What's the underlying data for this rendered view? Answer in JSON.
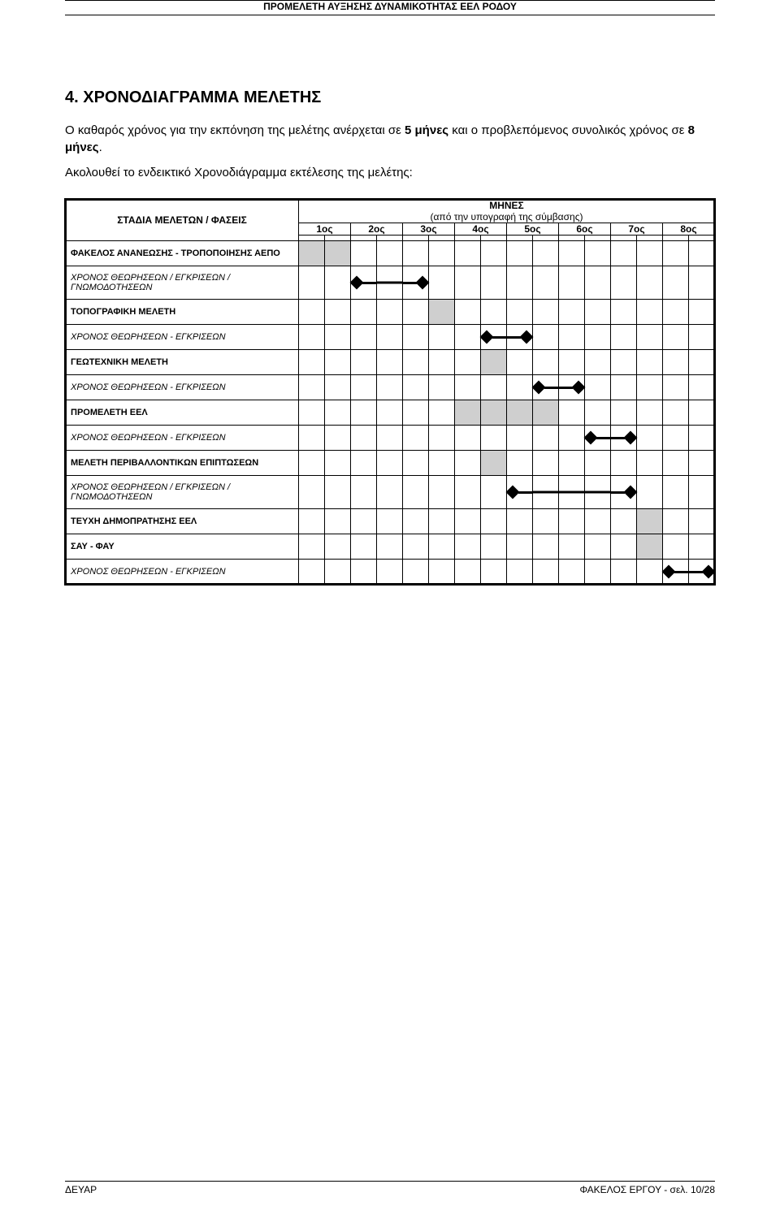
{
  "running_header": "ΠΡΟΜΕΛΕΤΗ ΑΥΞΗΣΗΣ ΔΥΝΑΜΙΚΟΤΗΤΑΣ ΕΕΛ ΡΟΔΟΥ",
  "heading": "4.    ΧΡΟΝΟΔΙΑΓΡΑΜΜΑ  ΜΕΛΕΤΗΣ",
  "para1_a": "Ο καθαρός χρόνος για την εκπόνηση της μελέτης ανέρχεται σε ",
  "para1_5": "5 μήνες",
  "para1_b": " και ο προβλεπόμενος συνολικός χρόνος σε ",
  "para1_8": "8 μήνες",
  "para1_c": ".",
  "para2": "Ακολουθεί το ενδεικτικό Χρονοδιάγραμμα εκτέλεσης της μελέτης:",
  "table_phases_label": "ΣΤΑΔΙΑ ΜΕΛΕΤΩΝ / ΦΑΣΕΙΣ",
  "months_title": "ΜΗΝΕΣ",
  "months_subtitle": "(από την υπογραφή της σύμβασης)",
  "months": [
    "1ος",
    "2ος",
    "3ος",
    "4ος",
    "5ος",
    "6ος",
    "7ος",
    "8ος"
  ],
  "rows": [
    {
      "label": "ΦΑΚΕΛΟΣ ΑΝΑΝΕΩΣΗΣ - ΤΡΟΠΟΠΟΙΗΣΗΣ ΑΕΠΟ",
      "bold": true,
      "shaded": [
        1,
        2
      ],
      "milestone": null
    },
    {
      "label": "ΧΡΟΝΟΣ ΘΕΩΡΗΣΕΩΝ / ΕΓΚΡΙΣΕΩΝ / ΓΝΩΜΟΔΟΤΗΣΕΩΝ",
      "italic": true,
      "shaded": [],
      "milestone": {
        "from": 3,
        "to": 5
      }
    },
    {
      "label": "ΤΟΠΟΓΡΑΦΙΚΗ ΜΕΛΕΤΗ",
      "bold": true,
      "shaded": [
        6
      ],
      "milestone": null
    },
    {
      "label": "ΧΡΟΝΟΣ ΘΕΩΡΗΣΕΩΝ - ΕΓΚΡΙΣΕΩΝ",
      "italic": true,
      "shaded": [],
      "milestone": {
        "from": 8,
        "to": 9
      }
    },
    {
      "label": "ΓΕΩΤΕΧΝΙΚΗ ΜΕΛΕΤΗ",
      "bold": true,
      "shaded": [
        8
      ],
      "milestone": null
    },
    {
      "label": "ΧΡΟΝΟΣ ΘΕΩΡΗΣΕΩΝ - ΕΓΚΡΙΣΕΩΝ",
      "italic": true,
      "shaded": [],
      "milestone": {
        "from": 10,
        "to": 11
      }
    },
    {
      "label": "ΠΡΟΜΕΛΕΤΗ ΕΕΛ",
      "bold": true,
      "shaded": [
        7,
        8,
        9,
        10
      ],
      "milestone": null
    },
    {
      "label": "ΧΡΟΝΟΣ ΘΕΩΡΗΣΕΩΝ - ΕΓΚΡΙΣΕΩΝ",
      "italic": true,
      "shaded": [],
      "milestone": {
        "from": 12,
        "to": 13
      }
    },
    {
      "label": "ΜΕΛΕΤΗ ΠΕΡΙΒΑΛΛΟΝΤΙΚΩΝ ΕΠΙΠΤΩΣΕΩΝ",
      "bold": true,
      "shaded": [
        8
      ],
      "milestone": null
    },
    {
      "label": "ΧΡΟΝΟΣ ΘΕΩΡΗΣΕΩΝ / ΕΓΚΡΙΣΕΩΝ / ΓΝΩΜΟΔΟΤΗΣΕΩΝ",
      "italic": true,
      "shaded": [],
      "milestone": {
        "from": 9,
        "to": 13
      }
    },
    {
      "label": "ΤΕΥΧΗ ΔΗΜΟΠΡΑΤΗΣΗΣ ΕΕΛ",
      "bold": true,
      "shaded": [
        14
      ],
      "milestone": null
    },
    {
      "label": "ΣΑΥ - ΦΑΥ",
      "bold": true,
      "shaded": [
        14
      ],
      "milestone": null
    },
    {
      "label": "ΧΡΟΝΟΣ ΘΕΩΡΗΣΕΩΝ - ΕΓΚΡΙΣΕΩΝ",
      "italic": true,
      "shaded": [],
      "milestone": {
        "from": 15,
        "to": 16
      }
    }
  ],
  "footer_left": "ΔΕΥΑΡ",
  "footer_right": "ΦΑΚΕΛΟΣ ΕΡΓΟΥ  - σελ. 10/28"
}
